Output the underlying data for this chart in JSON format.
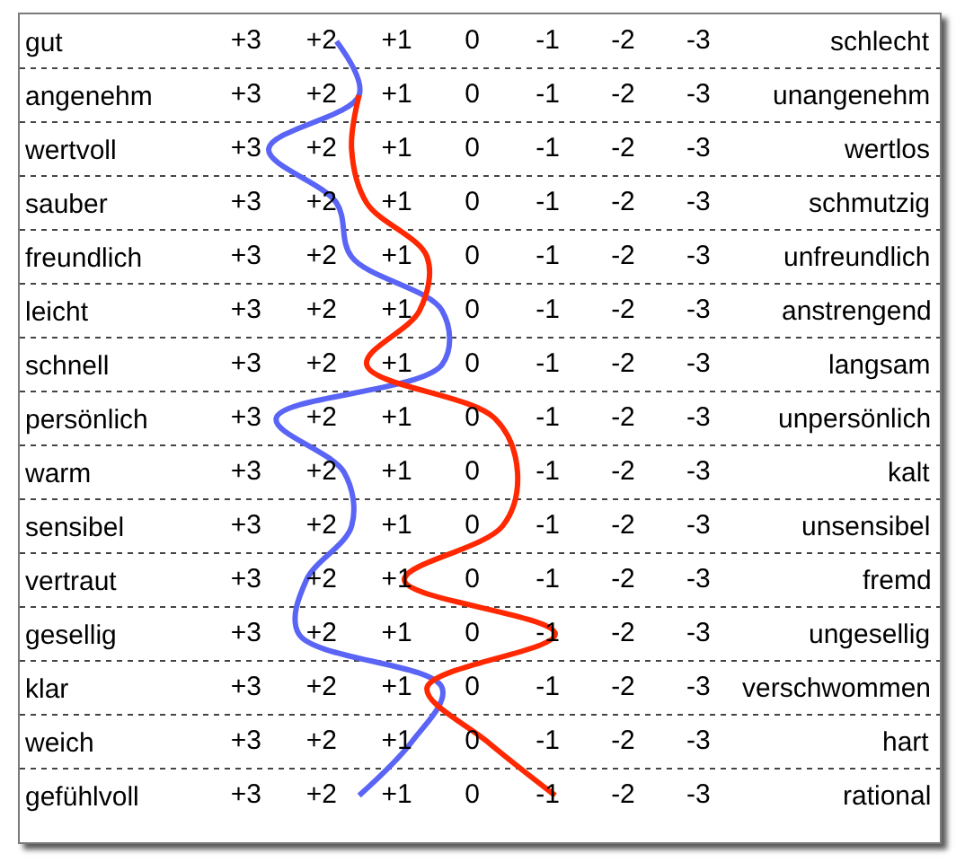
{
  "chart_data": {
    "type": "line",
    "orientation": "horizontal",
    "categories": [
      "gut",
      "angenehm",
      "wertvoll",
      "sauber",
      "freundlich",
      "leicht",
      "schnell",
      "persönlich",
      "warm",
      "sensibel",
      "vertraut",
      "gesellig",
      "klar",
      "weich",
      "gefühlvoll"
    ],
    "y2_categories": [
      "schlecht",
      "unangenehm",
      "wertlos",
      "schmutzig",
      "unfreundlich",
      "anstrengend",
      "langsam",
      "unpersönlich",
      "kalt",
      "unsensibel",
      "fremd",
      "ungesellig",
      "verschwommen",
      "hart",
      "rational"
    ],
    "xlim": [
      6,
      -6.2
    ],
    "xticks": [
      {
        "value": 3,
        "label": "+3"
      },
      {
        "value": 2,
        "label": "+2"
      },
      {
        "value": 1,
        "label": "+1"
      },
      {
        "value": 0,
        "label": "0"
      },
      {
        "value": -1,
        "label": "-1"
      },
      {
        "value": -2,
        "label": "-2"
      },
      {
        "value": -3,
        "label": "-3"
      }
    ],
    "grid": "y",
    "series": [
      {
        "color": "#5a64f5",
        "values": [
          1.8,
          1.5,
          2.7,
          1.8,
          1.6,
          0.4,
          0.4,
          2.6,
          1.7,
          1.6,
          2.2,
          2.3,
          0.4,
          0.8,
          1.5
        ]
      },
      {
        "color": "#ff2800",
        "values": [
          null,
          1.5,
          1.6,
          1.4,
          0.6,
          0.7,
          1.4,
          -0.3,
          -0.6,
          -0.4,
          0.9,
          -1.1,
          0.6,
          -0.2,
          -1.1
        ]
      }
    ]
  }
}
